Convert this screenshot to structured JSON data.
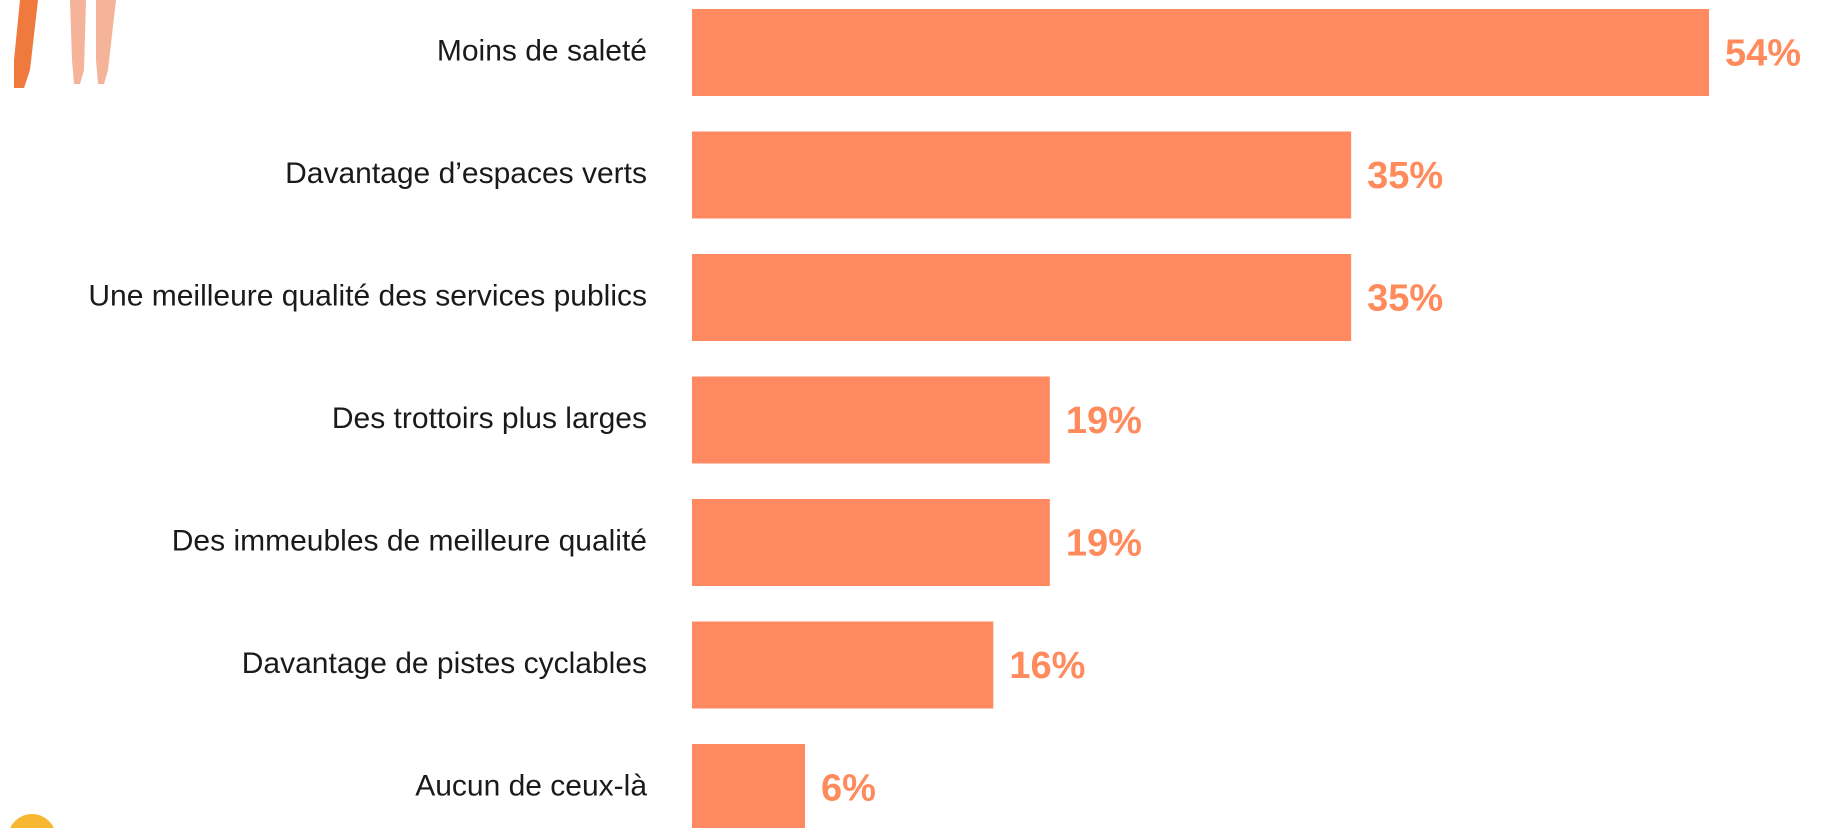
{
  "chart_data": {
    "type": "bar",
    "orientation": "horizontal",
    "categories": [
      "Moins de saleté",
      "Davantage d’espaces verts",
      "Une meilleure qualité des services publics",
      "Des trottoirs plus larges",
      "Des immeubles de meilleure qualité",
      "Davantage de pistes cyclables",
      "Aucun de ceux-là"
    ],
    "values": [
      54,
      35,
      35,
      19,
      19,
      16,
      6
    ],
    "value_labels": [
      "54%",
      "35%",
      "35%",
      "19%",
      "19%",
      "16%",
      "6%"
    ],
    "color": "#ff8a62",
    "xlim": [
      0,
      54
    ]
  }
}
